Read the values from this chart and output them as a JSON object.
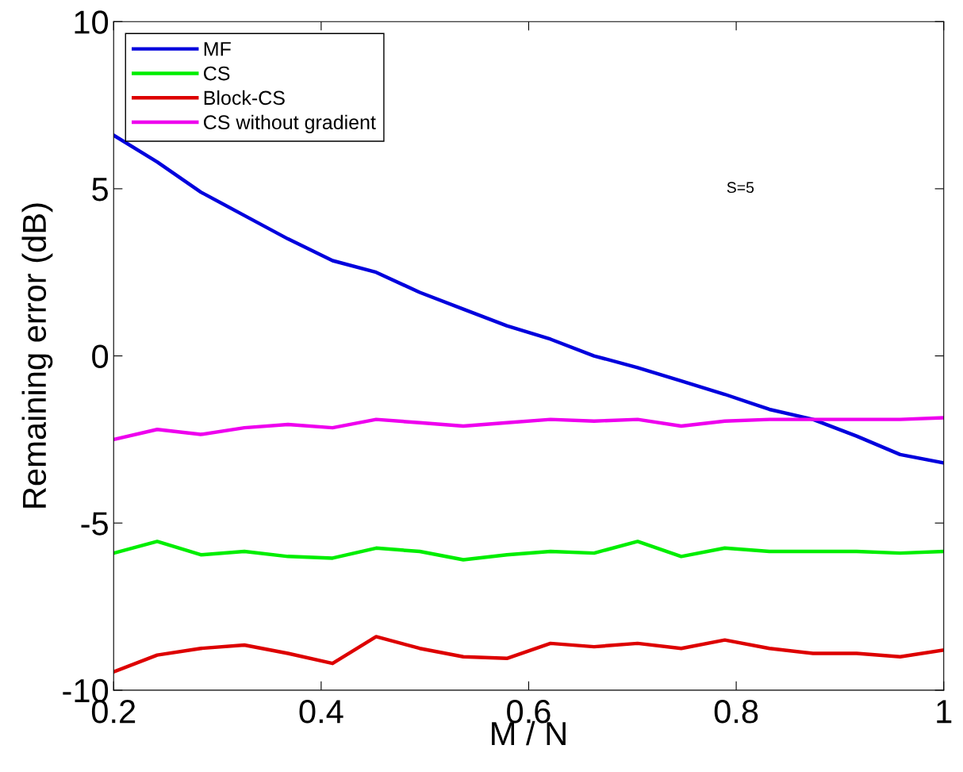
{
  "chart_data": {
    "type": "line",
    "xlabel": "M / N",
    "ylabel": "Remaining error (dB)",
    "x": [
      0.2,
      0.242,
      0.284,
      0.326,
      0.368,
      0.411,
      0.453,
      0.495,
      0.537,
      0.579,
      0.621,
      0.663,
      0.705,
      0.747,
      0.789,
      0.832,
      0.874,
      0.916,
      0.958,
      1.0
    ],
    "series": [
      {
        "name": "MF",
        "color": "#0000dd",
        "values": [
          6.6,
          5.8,
          4.9,
          4.2,
          3.5,
          2.85,
          2.5,
          1.9,
          1.4,
          0.9,
          0.5,
          0.0,
          -0.35,
          -0.75,
          -1.15,
          -1.6,
          -1.9,
          -2.4,
          -2.95,
          -3.2
        ]
      },
      {
        "name": "CS",
        "color": "#00ee00",
        "values": [
          -5.9,
          -5.55,
          -5.95,
          -5.85,
          -6.0,
          -6.05,
          -5.75,
          -5.85,
          -6.1,
          -5.95,
          -5.85,
          -5.9,
          -5.55,
          -6.0,
          -5.75,
          -5.85,
          -5.85,
          -5.85,
          -5.9,
          -5.85
        ]
      },
      {
        "name": "Block-CS",
        "color": "#dd0000",
        "values": [
          -9.45,
          -8.95,
          -8.75,
          -8.65,
          -8.9,
          -9.2,
          -8.4,
          -8.75,
          -9.0,
          -9.05,
          -8.6,
          -8.7,
          -8.6,
          -8.75,
          -8.5,
          -8.75,
          -8.9,
          -8.9,
          -9.0,
          -8.8
        ]
      },
      {
        "name": "CS without gradient",
        "color": "#ee00ee",
        "values": [
          -2.5,
          -2.2,
          -2.35,
          -2.15,
          -2.05,
          -2.15,
          -1.9,
          -2.0,
          -2.1,
          -2.0,
          -1.9,
          -1.95,
          -1.9,
          -2.1,
          -1.95,
          -1.9,
          -1.9,
          -1.9,
          -1.9,
          -1.85
        ]
      }
    ],
    "annotations": [
      "S=5"
    ],
    "xlim": [
      0.2,
      1.0
    ],
    "ylim": [
      -10,
      10
    ],
    "xticks": [
      0.2,
      0.4,
      0.6,
      0.8,
      1
    ],
    "yticks": [
      -10,
      -5,
      0,
      5,
      10
    ],
    "grid": false,
    "legend": "top left",
    "marker": "none",
    "line_style": "solid"
  }
}
